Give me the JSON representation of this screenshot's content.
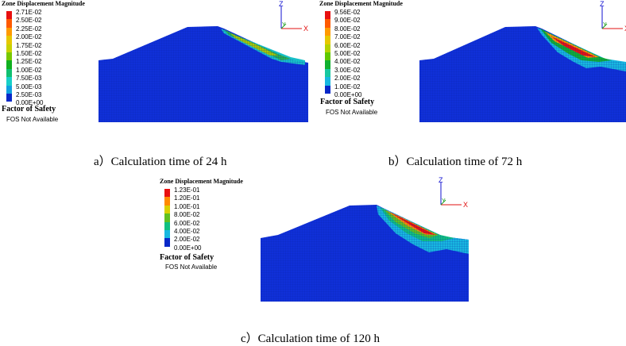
{
  "panels": [
    {
      "legend_title": "Zone Displacement Magnitude",
      "legend_values": [
        "2.71E-02",
        "2.50E-02",
        "2.25E-02",
        "2.00E-02",
        "1.75E-02",
        "1.50E-02",
        "1.25E-02",
        "1.00E-02",
        "7.50E-03",
        "5.00E-03",
        "2.50E-03",
        "0.00E+00"
      ],
      "fos_title": "Factor of Safety",
      "fos_status": "FOS Not Available",
      "caption": "a）Calculation time of 24 h"
    },
    {
      "legend_title": "Zone Displacement Magnitude",
      "legend_values": [
        "9.56E-02",
        "9.00E-02",
        "8.00E-02",
        "7.00E-02",
        "6.00E-02",
        "5.00E-02",
        "4.00E-02",
        "3.00E-02",
        "2.00E-02",
        "1.00E-02",
        "0.00E+00"
      ],
      "fos_title": "Factor of Safety",
      "fos_status": "FOS Not Available",
      "caption": "b）Calculation time of 72 h"
    },
    {
      "legend_title": "Zone Displacement Magnitude",
      "legend_values": [
        "1.23E-01",
        "1.20E-01",
        "1.00E-01",
        "8.00E-02",
        "6.00E-02",
        "4.00E-02",
        "2.00E-02",
        "0.00E+00"
      ],
      "fos_title": "Factor of Safety",
      "fos_status": "FOS Not Available",
      "caption": "c）Calculation time of 120 h"
    }
  ],
  "axes_labels": {
    "z": "Z",
    "y": "Y",
    "x": "X"
  },
  "colors": {
    "soil_blue": "#1030d8",
    "axis_x": "#e01010",
    "axis_y": "#20a020",
    "axis_z": "#1010d0"
  },
  "legend_colors": {
    "panel_a": [
      "#e81010",
      "#ff5a00",
      "#ff9a00",
      "#e6c800",
      "#c8d200",
      "#78c800",
      "#10b020",
      "#10c070",
      "#18d0c8",
      "#10a0e0",
      "#0828c8"
    ],
    "panel_b": [
      "#e81010",
      "#ff5a00",
      "#ff9a00",
      "#e6c800",
      "#b4d200",
      "#60c800",
      "#10b030",
      "#18c8a0",
      "#18b8e0",
      "#0828c8"
    ],
    "panel_c": [
      "#e81010",
      "#ff8a00",
      "#d8d000",
      "#60c020",
      "#10c080",
      "#18b8e0",
      "#0828c8"
    ]
  }
}
